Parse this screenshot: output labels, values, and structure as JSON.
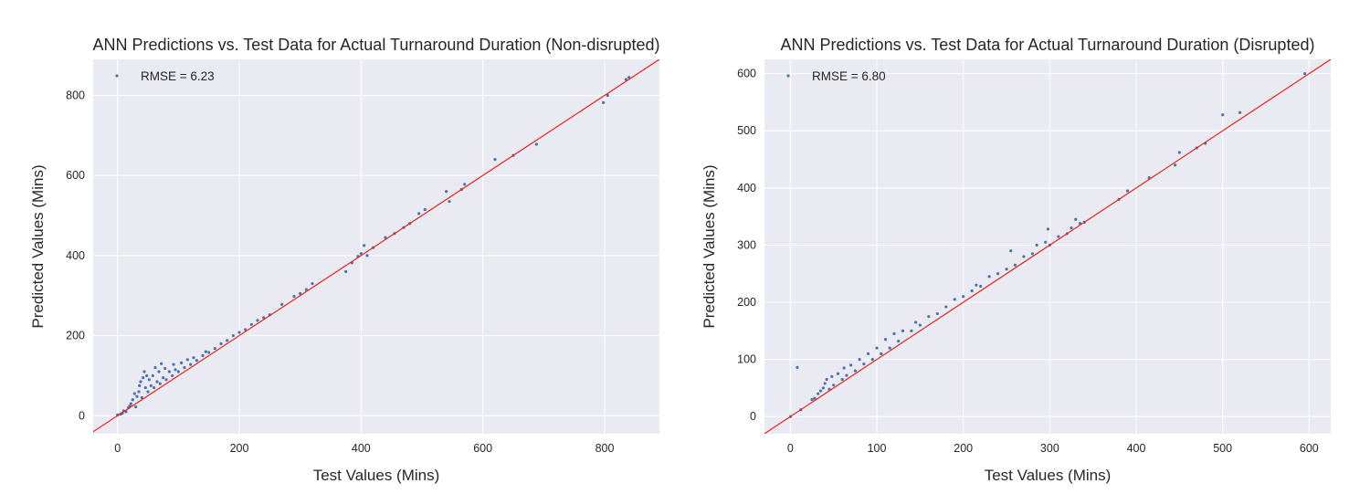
{
  "chart_data": [
    {
      "type": "scatter",
      "title": "ANN Predictions vs. Test Data for Actual Turnaround Duration (Non-disrupted)",
      "xlabel": "Test Values (Mins)",
      "ylabel": "Predicted Values (Mins)",
      "xlim": [
        -40,
        890
      ],
      "ylim": [
        -45,
        890
      ],
      "xticks": [
        0,
        200,
        400,
        600,
        800
      ],
      "yticks": [
        0,
        200,
        400,
        600,
        800
      ],
      "grid": true,
      "reference_line": "y = x",
      "legend": {
        "placement": "top-left",
        "label": "RMSE = 6.23"
      },
      "series": [
        {
          "marker_color": "#4c72b0",
          "points": [
            [
              0,
              2
            ],
            [
              5,
              4
            ],
            [
              8,
              6
            ],
            [
              10,
              12
            ],
            [
              14,
              10
            ],
            [
              18,
              20
            ],
            [
              20,
              24
            ],
            [
              22,
              30
            ],
            [
              25,
              40
            ],
            [
              28,
              55
            ],
            [
              30,
              22
            ],
            [
              32,
              48
            ],
            [
              35,
              60
            ],
            [
              36,
              75
            ],
            [
              38,
              85
            ],
            [
              40,
              45
            ],
            [
              42,
              95
            ],
            [
              44,
              110
            ],
            [
              46,
              70
            ],
            [
              48,
              100
            ],
            [
              50,
              60
            ],
            [
              52,
              90
            ],
            [
              55,
              75
            ],
            [
              58,
              100
            ],
            [
              60,
              70
            ],
            [
              62,
              120
            ],
            [
              65,
              85
            ],
            [
              68,
              110
            ],
            [
              70,
              80
            ],
            [
              72,
              130
            ],
            [
              75,
              95
            ],
            [
              78,
              118
            ],
            [
              80,
              90
            ],
            [
              85,
              110
            ],
            [
              90,
              100
            ],
            [
              92,
              128
            ],
            [
              95,
              115
            ],
            [
              100,
              110
            ],
            [
              105,
              132
            ],
            [
              110,
              120
            ],
            [
              115,
              140
            ],
            [
              120,
              128
            ],
            [
              125,
              145
            ],
            [
              130,
              138
            ],
            [
              140,
              150
            ],
            [
              145,
              160
            ],
            [
              150,
              158
            ],
            [
              160,
              168
            ],
            [
              170,
              180
            ],
            [
              180,
              188
            ],
            [
              190,
              200
            ],
            [
              200,
              208
            ],
            [
              210,
              215
            ],
            [
              220,
              228
            ],
            [
              230,
              238
            ],
            [
              240,
              245
            ],
            [
              250,
              252
            ],
            [
              270,
              278
            ],
            [
              290,
              298
            ],
            [
              300,
              305
            ],
            [
              310,
              315
            ],
            [
              320,
              330
            ],
            [
              375,
              360
            ],
            [
              385,
              382
            ],
            [
              395,
              398
            ],
            [
              400,
              405
            ],
            [
              405,
              425
            ],
            [
              410,
              400
            ],
            [
              420,
              420
            ],
            [
              440,
              445
            ],
            [
              455,
              455
            ],
            [
              470,
              470
            ],
            [
              480,
              480
            ],
            [
              495,
              505
            ],
            [
              505,
              515
            ],
            [
              540,
              560
            ],
            [
              545,
              535
            ],
            [
              565,
              565
            ],
            [
              570,
              578
            ],
            [
              620,
              640
            ],
            [
              650,
              650
            ],
            [
              688,
              678
            ],
            [
              798,
              782
            ],
            [
              805,
              800
            ],
            [
              835,
              840
            ],
            [
              840,
              845
            ]
          ]
        }
      ]
    },
    {
      "type": "scatter",
      "title": "ANN Predictions vs. Test Data for Actual Turnaround Duration (Disrupted)",
      "xlabel": "Test Values (Mins)",
      "ylabel": "Predicted Values (Mins)",
      "xlim": [
        -30,
        625
      ],
      "ylim": [
        -30,
        625
      ],
      "xticks": [
        0,
        100,
        200,
        300,
        400,
        500,
        600
      ],
      "yticks": [
        0,
        100,
        200,
        300,
        400,
        500,
        600
      ],
      "grid": true,
      "reference_line": "y = x",
      "legend": {
        "placement": "top-left",
        "label": "RMSE = 6.80"
      },
      "series": [
        {
          "marker_color": "#4c72b0",
          "points": [
            [
              0,
              0
            ],
            [
              8,
              86
            ],
            [
              12,
              12
            ],
            [
              25,
              30
            ],
            [
              28,
              32
            ],
            [
              32,
              40
            ],
            [
              35,
              45
            ],
            [
              38,
              50
            ],
            [
              40,
              58
            ],
            [
              42,
              65
            ],
            [
              45,
              48
            ],
            [
              48,
              70
            ],
            [
              50,
              55
            ],
            [
              55,
              75
            ],
            [
              60,
              65
            ],
            [
              62,
              85
            ],
            [
              65,
              72
            ],
            [
              70,
              90
            ],
            [
              75,
              80
            ],
            [
              80,
              100
            ],
            [
              85,
              92
            ],
            [
              90,
              110
            ],
            [
              95,
              100
            ],
            [
              100,
              120
            ],
            [
              105,
              110
            ],
            [
              110,
              135
            ],
            [
              115,
              120
            ],
            [
              120,
              145
            ],
            [
              125,
              132
            ],
            [
              130,
              150
            ],
            [
              140,
              150
            ],
            [
              145,
              165
            ],
            [
              150,
              160
            ],
            [
              160,
              175
            ],
            [
              170,
              180
            ],
            [
              180,
              192
            ],
            [
              190,
              205
            ],
            [
              200,
              210
            ],
            [
              210,
              220
            ],
            [
              215,
              230
            ],
            [
              220,
              228
            ],
            [
              230,
              245
            ],
            [
              240,
              250
            ],
            [
              250,
              258
            ],
            [
              255,
              290
            ],
            [
              260,
              265
            ],
            [
              270,
              280
            ],
            [
              280,
              285
            ],
            [
              285,
              300
            ],
            [
              295,
              305
            ],
            [
              298,
              328
            ],
            [
              300,
              300
            ],
            [
              310,
              315
            ],
            [
              320,
              320
            ],
            [
              325,
              330
            ],
            [
              330,
              345
            ],
            [
              335,
              338
            ],
            [
              340,
              340
            ],
            [
              380,
              380
            ],
            [
              390,
              395
            ],
            [
              415,
              418
            ],
            [
              445,
              440
            ],
            [
              450,
              462
            ],
            [
              470,
              470
            ],
            [
              480,
              478
            ],
            [
              500,
              528
            ],
            [
              520,
              532
            ],
            [
              595,
              600
            ]
          ]
        }
      ]
    }
  ]
}
